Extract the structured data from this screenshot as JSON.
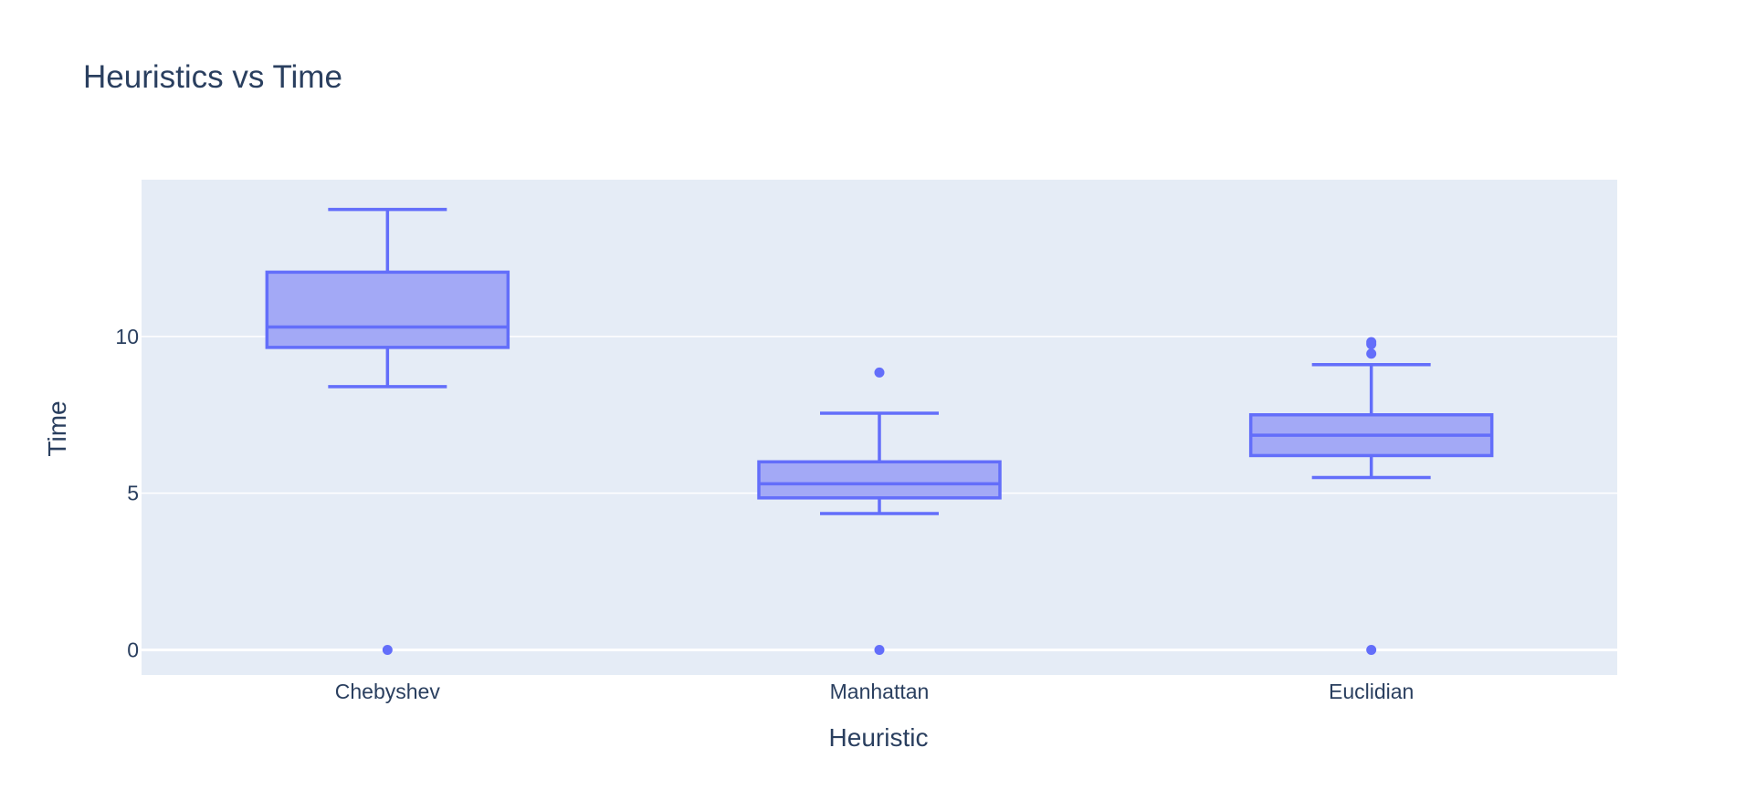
{
  "chart_data": {
    "type": "box",
    "title": "Heuristics vs Time",
    "xlabel": "Heuristic",
    "ylabel": "Time",
    "ylim": [
      -0.8,
      15.0
    ],
    "yticks": [
      0,
      5,
      10
    ],
    "grid": true,
    "legend": "none",
    "colors": {
      "box_line": "#636efa",
      "box_fill": "#a3a9f6",
      "plot_bg": "#e5ecf6",
      "grid": "#ffffff",
      "text": "#2a3f5f"
    },
    "categories": [
      "Chebyshev",
      "Manhattan",
      "Euclidian"
    ],
    "boxes": [
      {
        "name": "Chebyshev",
        "lowerfence": 8.4,
        "q1": 9.65,
        "median": 10.3,
        "q3": 12.05,
        "upperfence": 14.05,
        "outliers": [
          0
        ]
      },
      {
        "name": "Manhattan",
        "lowerfence": 4.35,
        "q1": 4.85,
        "median": 5.3,
        "q3": 6.0,
        "upperfence": 7.55,
        "outliers": [
          8.85,
          0
        ]
      },
      {
        "name": "Euclidian",
        "lowerfence": 5.5,
        "q1": 6.2,
        "median": 6.85,
        "q3": 7.5,
        "upperfence": 9.1,
        "outliers": [
          9.45,
          9.75,
          9.82,
          0
        ]
      }
    ]
  }
}
